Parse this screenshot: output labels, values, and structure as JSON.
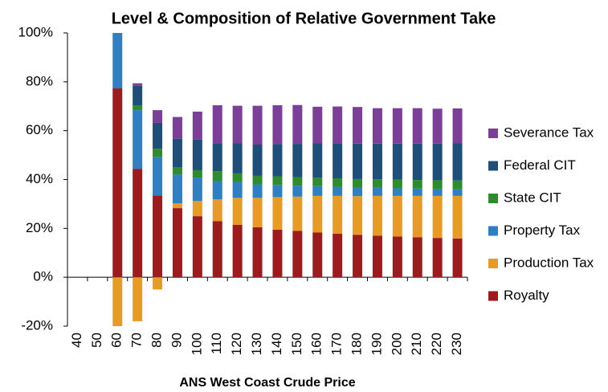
{
  "chart_data": {
    "type": "bar",
    "stacked": true,
    "title": "Level & Composition of Relative Government Take",
    "x_label": "ANS West Coast Crude Price",
    "categories": [
      "40",
      "50",
      "60",
      "70",
      "80",
      "90",
      "100",
      "110",
      "120",
      "130",
      "140",
      "150",
      "160",
      "170",
      "180",
      "190",
      "200",
      "210",
      "220",
      "230"
    ],
    "series": [
      {
        "name": "Royalty",
        "color": "#9b1b1f",
        "values": [
          0,
          0,
          77.3,
          44.4,
          33.5,
          28.3,
          25,
          23,
          21.5,
          20.5,
          19.5,
          19,
          18.3,
          17.8,
          17.4,
          17,
          16.7,
          16.4,
          16.1,
          15.9
        ]
      },
      {
        "name": "Production Tax",
        "color": "#e69b26",
        "values": [
          0,
          0,
          -20,
          -18,
          -5,
          2,
          6.2,
          8.9,
          11,
          12,
          13.3,
          14,
          15,
          15.5,
          15.8,
          16.3,
          16.6,
          16.9,
          17.2,
          17.4
        ]
      },
      {
        "name": "Property Tax",
        "color": "#2f7fc1",
        "values": [
          0,
          0,
          22.7,
          24,
          15.8,
          11.8,
          9.6,
          7.6,
          6.5,
          5.5,
          5,
          4.5,
          4,
          3.7,
          3.5,
          3.3,
          3.1,
          3,
          2.9,
          2.8
        ]
      },
      {
        "name": "State CIT",
        "color": "#2e8b2e",
        "values": [
          0,
          0,
          0,
          2,
          3.3,
          3,
          3,
          3.9,
          3.5,
          3.5,
          3.5,
          3.5,
          3.5,
          3.5,
          3.5,
          3.5,
          3.5,
          3.5,
          3.5,
          3.5
        ]
      },
      {
        "name": "Federal CIT",
        "color": "#1f4e79",
        "values": [
          0,
          0,
          0,
          8,
          10.6,
          11.6,
          12.5,
          11.5,
          12.3,
          12.8,
          13.2,
          13.6,
          14,
          14.4,
          14.5,
          14.6,
          14.8,
          14.9,
          15,
          15.2
        ]
      },
      {
        "name": "Severance Tax",
        "color": "#7b3f98",
        "values": [
          0,
          0,
          0,
          1,
          5.2,
          8.9,
          11.5,
          15.5,
          15.4,
          15.9,
          15.9,
          15.9,
          15,
          15,
          15,
          14.5,
          14.5,
          14.5,
          14.3,
          14.3
        ]
      }
    ],
    "ylim": [
      -20,
      100
    ],
    "yticks": [
      {
        "value": -20,
        "label": "-20%"
      },
      {
        "value": 0,
        "label": "0%"
      },
      {
        "value": 20,
        "label": "20%"
      },
      {
        "value": 40,
        "label": "40%"
      },
      {
        "value": 60,
        "label": "60%"
      },
      {
        "value": 80,
        "label": "80%"
      },
      {
        "value": 100,
        "label": "100%"
      }
    ],
    "legend": "right"
  }
}
